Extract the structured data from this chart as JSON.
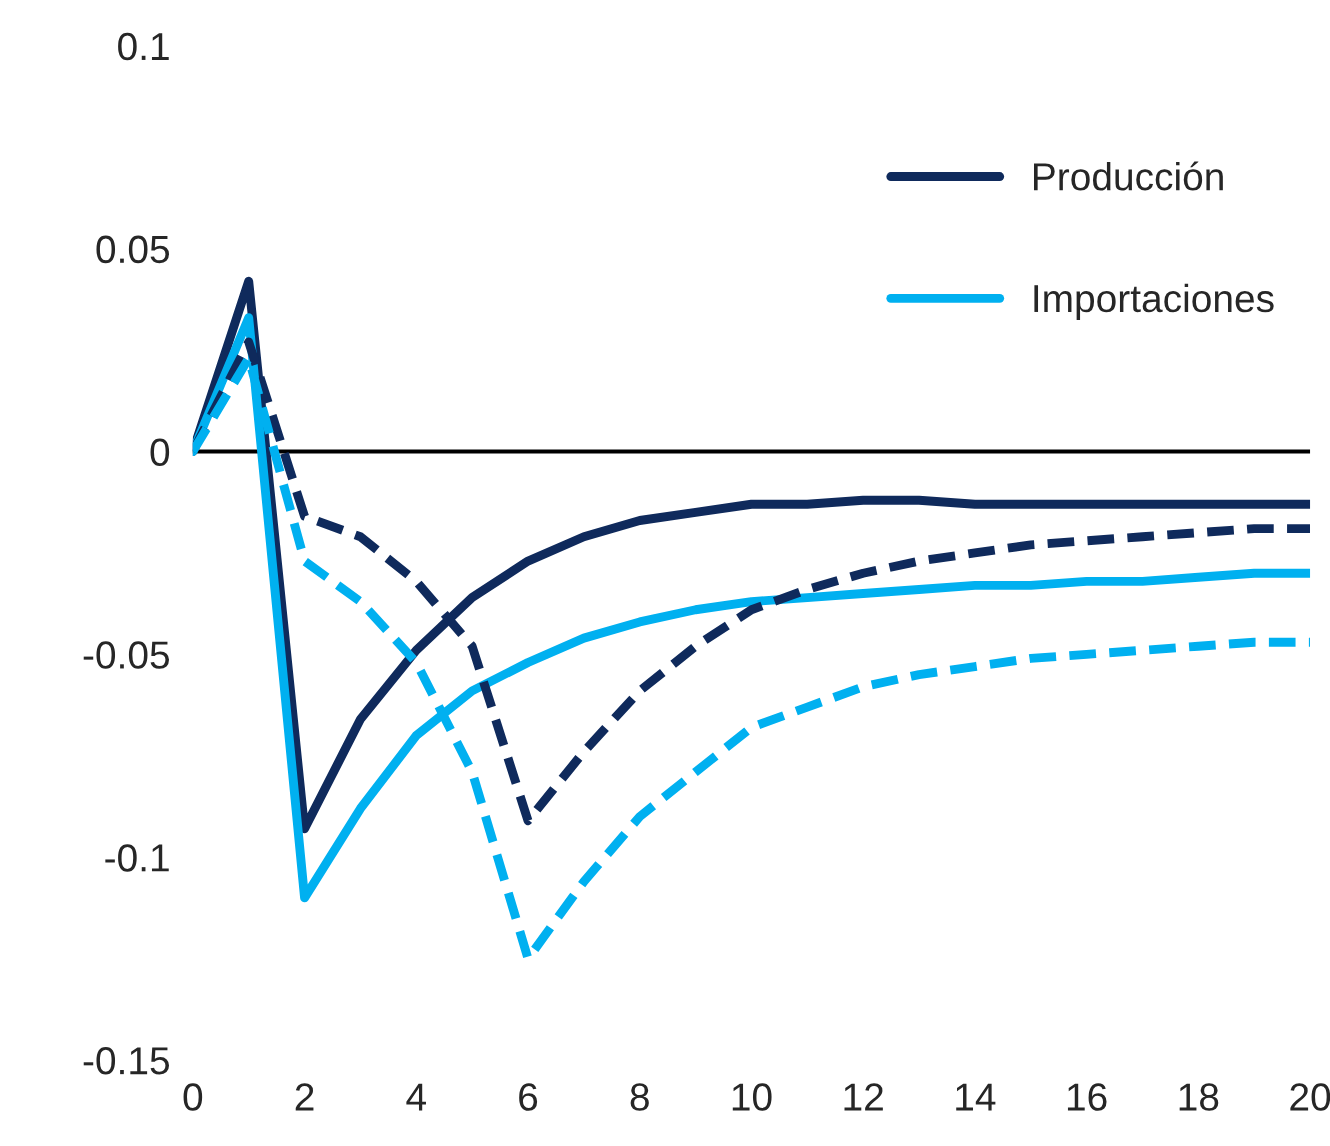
{
  "chart_data": {
    "type": "line",
    "x": [
      0,
      1,
      2,
      3,
      4,
      5,
      6,
      7,
      8,
      9,
      10,
      11,
      12,
      13,
      14,
      15,
      16,
      17,
      18,
      19,
      20
    ],
    "series": [
      {
        "name": "Producción",
        "color": "#0f2a5c",
        "line_style": "solid",
        "values": [
          0,
          0.042,
          -0.093,
          -0.066,
          -0.049,
          -0.036,
          -0.027,
          -0.021,
          -0.017,
          -0.015,
          -0.013,
          -0.013,
          -0.012,
          -0.012,
          -0.013,
          -0.013,
          -0.013,
          -0.013,
          -0.013,
          -0.013,
          -0.013
        ]
      },
      {
        "name": "Importaciones",
        "color": "#00b0f0",
        "line_style": "solid",
        "values": [
          0,
          0.033,
          -0.11,
          -0.088,
          -0.07,
          -0.059,
          -0.052,
          -0.046,
          -0.042,
          -0.039,
          -0.037,
          -0.036,
          -0.035,
          -0.034,
          -0.033,
          -0.033,
          -0.032,
          -0.032,
          -0.031,
          -0.03,
          -0.03
        ]
      },
      {
        "color": "#0f2a5c",
        "line_style": "dashed",
        "values": [
          0,
          0.027,
          -0.016,
          -0.021,
          -0.032,
          -0.048,
          -0.091,
          -0.074,
          -0.059,
          -0.048,
          -0.039,
          -0.034,
          -0.03,
          -0.027,
          -0.025,
          -0.023,
          -0.022,
          -0.021,
          -0.02,
          -0.019,
          -0.019
        ]
      },
      {
        "color": "#00b0f0",
        "line_style": "dashed",
        "values": [
          0,
          0.023,
          -0.027,
          -0.037,
          -0.052,
          -0.079,
          -0.125,
          -0.106,
          -0.09,
          -0.079,
          -0.068,
          -0.063,
          -0.058,
          -0.055,
          -0.053,
          -0.051,
          -0.05,
          -0.049,
          -0.048,
          -0.047,
          -0.047
        ]
      }
    ],
    "xlim": [
      0,
      20
    ],
    "xticks": [
      0,
      2,
      4,
      6,
      8,
      10,
      12,
      14,
      16,
      18,
      20
    ],
    "ylim": [
      -0.15,
      0.1
    ],
    "yticks": [
      -0.15,
      -0.1,
      -0.05,
      0,
      0.05,
      0.1
    ],
    "ref_lines": [
      {
        "axis": "y",
        "value": 0,
        "color": "#000000"
      }
    ],
    "grid": false,
    "legend": "top right",
    "marker": "none"
  }
}
